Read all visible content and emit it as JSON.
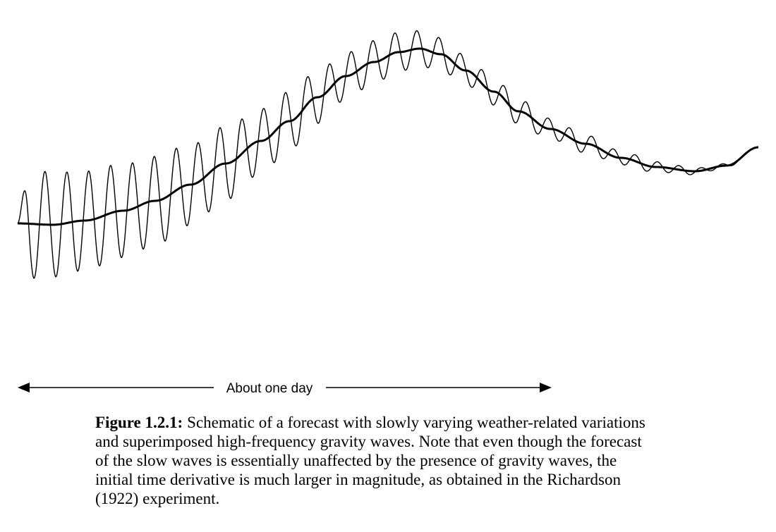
{
  "figure": {
    "scale_label": "About one day",
    "curves": [
      {
        "id": "slow-wave",
        "description_hidden": true
      },
      {
        "id": "gravity-waves",
        "description_hidden": true
      }
    ]
  },
  "caption": {
    "label": "Figure 1.2.1:",
    "lines": [
      "Schematic of a forecast with slowly varying weather-related variations",
      "and superimposed high-frequency gravity waves. Note that even though the forecast",
      "of the slow waves is essentially unaffected by the presence of gravity waves, the",
      "initial time derivative is much larger in magnitude, as obtained in the Richardson",
      "(1922) experiment."
    ]
  },
  "colors": {
    "ink": "#000000",
    "background": "#ffffff"
  }
}
